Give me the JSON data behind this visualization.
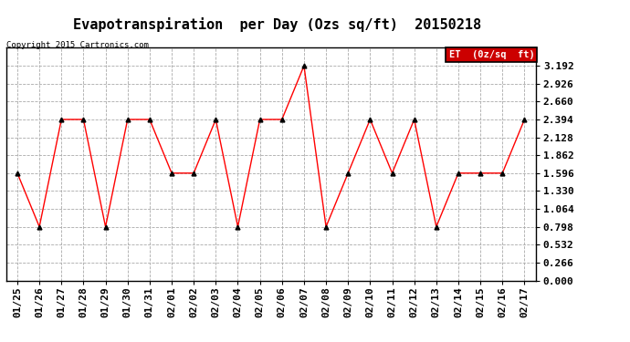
{
  "title": "Evapotranspiration  per Day (Ozs sq/ft)  20150218",
  "copyright": "Copyright 2015 Cartronics.com",
  "legend_label": "ET  (0z/sq  ft)",
  "dates": [
    "01/25",
    "01/26",
    "01/27",
    "01/28",
    "01/29",
    "01/30",
    "01/31",
    "02/01",
    "02/02",
    "02/03",
    "02/04",
    "02/05",
    "02/06",
    "02/07",
    "02/08",
    "02/09",
    "02/10",
    "02/11",
    "02/12",
    "02/13",
    "02/14",
    "02/15",
    "02/16",
    "02/17"
  ],
  "values": [
    1.596,
    0.798,
    2.394,
    2.394,
    0.798,
    2.394,
    2.394,
    1.596,
    1.596,
    2.394,
    0.798,
    2.394,
    2.394,
    3.192,
    0.798,
    1.596,
    2.394,
    1.596,
    2.394,
    0.798,
    1.596,
    1.596,
    1.596,
    2.394
  ],
  "line_color": "red",
  "marker_color": "black",
  "bg_color": "#ffffff",
  "grid_color": "#aaaaaa",
  "ylim": [
    0.0,
    3.458
  ],
  "yticks": [
    0.0,
    0.266,
    0.532,
    0.798,
    1.064,
    1.33,
    1.596,
    1.862,
    2.128,
    2.394,
    2.66,
    2.926,
    3.192
  ],
  "title_fontsize": 11,
  "axis_fontsize": 8,
  "legend_bg": "#cc0000",
  "legend_text_color": "#ffffff"
}
